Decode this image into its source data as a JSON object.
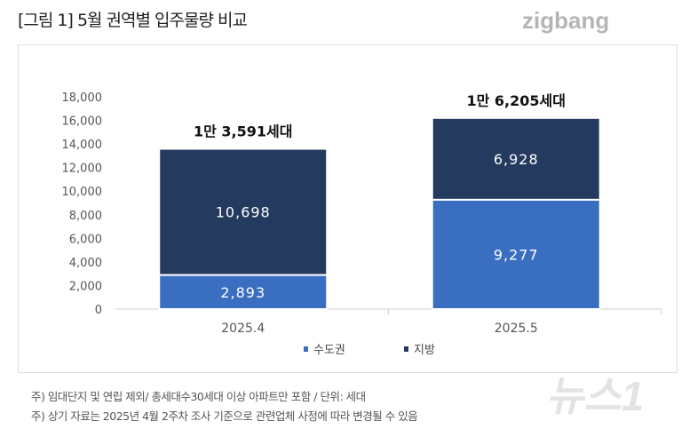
{
  "title": "[그림 1] 5월 권역별 입주물량 비교",
  "logo": "zigbang",
  "watermark": "뉴스1",
  "notes": [
    "주) 임대단지 및 연립 제외/ 총세대수30세대 이상 아파트만 포함 / 단위: 세대",
    "주) 상기 자료는 2025년 4월 2주차 조사 기준으로 관련업체 사정에 따라 변경될 수 있음"
  ],
  "chart_data": {
    "type": "bar",
    "stacked": true,
    "categories": [
      "2025.4",
      "2025.5"
    ],
    "series": [
      {
        "name": "수도권",
        "values": [
          2893,
          9277
        ],
        "labels": [
          "2,893",
          "9,277"
        ],
        "color": "#3a6ec0"
      },
      {
        "name": "지방",
        "values": [
          10698,
          6928
        ],
        "labels": [
          "10,698",
          "6,928"
        ],
        "color": "#243a5e"
      }
    ],
    "totals": [
      "1만 3,591세대",
      "1만 6,205세대"
    ],
    "ylim": [
      0,
      18000
    ],
    "yticks": [
      "0",
      "2,000",
      "4,000",
      "6,000",
      "8,000",
      "10,000",
      "12,000",
      "14,000",
      "16,000",
      "18,000"
    ],
    "grid": false,
    "legend": "bottom"
  }
}
